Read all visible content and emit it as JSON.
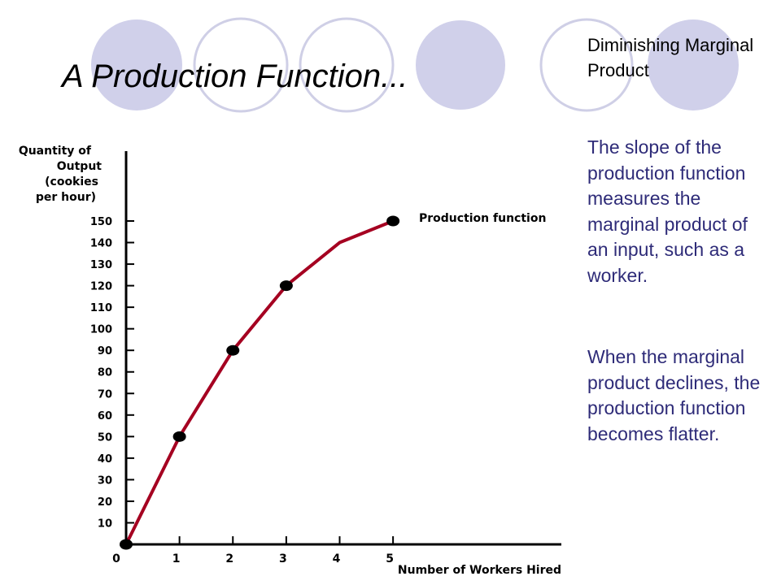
{
  "slide": {
    "title": "A Production Function...",
    "sidebar_heading": "Diminishing Marginal Product",
    "paragraphs": [
      "The slope of the production function measures the marginal product of an input, such as a worker.",
      "When the marginal product declines, the production function becomes flatter."
    ],
    "decor_colors": {
      "filled_circle": "#d0d0ea",
      "ring_stroke": "#cfcfe6"
    }
  },
  "chart_data": {
    "type": "line",
    "title": "",
    "xlabel": "Number of Workers Hired",
    "ylabel": "Quantity of Output (cookies per hour)",
    "ylabel_lines": [
      "Quantity of",
      "Output",
      "(cookies",
      "per hour)"
    ],
    "x_ticks": [
      "0",
      "1",
      "2",
      "3",
      "4",
      "5"
    ],
    "y_ticks": [
      "10",
      "20",
      "30",
      "40",
      "50",
      "60",
      "70",
      "80",
      "90",
      "100",
      "110",
      "120",
      "130",
      "140",
      "150"
    ],
    "xlim": [
      0,
      8
    ],
    "ylim": [
      0,
      150
    ],
    "grid": false,
    "series": [
      {
        "name": "Production function",
        "color": "#a50021",
        "x": [
          0,
          1,
          2,
          3,
          4,
          5
        ],
        "y": [
          0,
          50,
          90,
          120,
          140,
          150
        ]
      }
    ],
    "marked_points": [
      0,
      1,
      2,
      3,
      5
    ]
  }
}
